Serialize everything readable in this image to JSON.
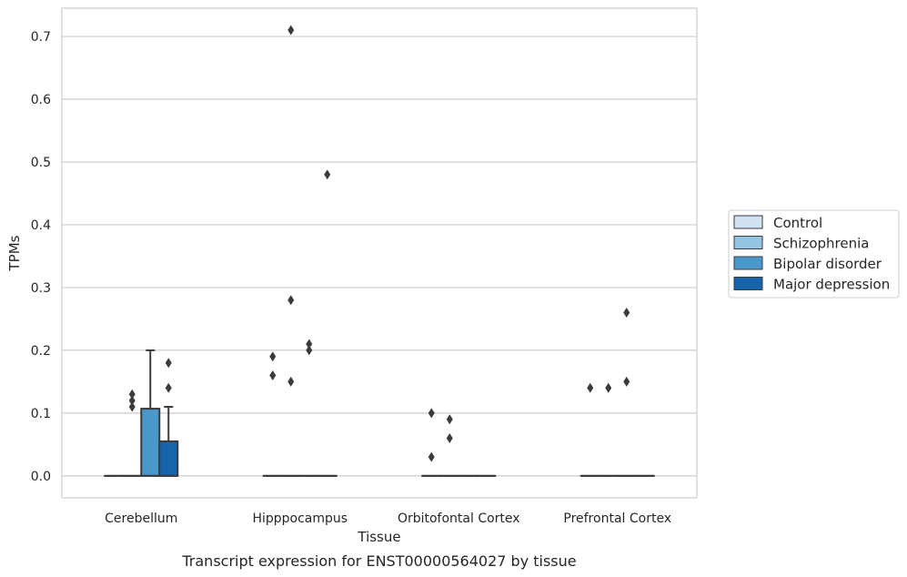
{
  "caption": "Transcript expression for ENST00000564027 by tissue",
  "chart_data": {
    "type": "box",
    "xlabel": "Tissue",
    "ylabel": "TPMs",
    "ylim": [
      -0.035,
      0.745
    ],
    "yticks": [
      "0.0",
      "0.1",
      "0.2",
      "0.3",
      "0.4",
      "0.5",
      "0.6",
      "0.7"
    ],
    "grid": "horizontal",
    "legend_position": "right",
    "categories": [
      "Cerebellum",
      "Hipppocampus",
      "Orbitofontal Cortex",
      "Prefrontal Cortex"
    ],
    "series": [
      {
        "name": "Control",
        "color": "#d0e1f2"
      },
      {
        "name": "Schizophrenia",
        "color": "#94c4df"
      },
      {
        "name": "Bipolar disorder",
        "color": "#4a98c9"
      },
      {
        "name": "Major depression",
        "color": "#1764ab"
      }
    ],
    "boxes": [
      [
        {
          "q1": 0,
          "median": 0,
          "q3": 0,
          "whisker_low": 0,
          "whisker_high": 0,
          "outliers": []
        },
        {
          "q1": 0,
          "median": 0,
          "q3": 0,
          "whisker_low": 0,
          "whisker_high": 0,
          "outliers": [
            0.11,
            0.12,
            0.13
          ]
        },
        {
          "q1": 0,
          "median": 0,
          "q3": 0.107,
          "whisker_low": 0,
          "whisker_high": 0.2,
          "outliers": []
        },
        {
          "q1": 0,
          "median": 0,
          "q3": 0.055,
          "whisker_low": 0,
          "whisker_high": 0.11,
          "outliers": [
            0.14,
            0.18
          ]
        }
      ],
      [
        {
          "q1": 0,
          "median": 0,
          "q3": 0,
          "whisker_low": 0,
          "whisker_high": 0,
          "outliers": [
            0.16,
            0.19
          ]
        },
        {
          "q1": 0,
          "median": 0,
          "q3": 0,
          "whisker_low": 0,
          "whisker_high": 0,
          "outliers": [
            0.15,
            0.28,
            0.71
          ]
        },
        {
          "q1": 0,
          "median": 0,
          "q3": 0,
          "whisker_low": 0,
          "whisker_high": 0,
          "outliers": [
            0.2,
            0.21
          ]
        },
        {
          "q1": 0,
          "median": 0,
          "q3": 0,
          "whisker_low": 0,
          "whisker_high": 0,
          "outliers": [
            0.48
          ]
        }
      ],
      [
        {
          "q1": 0,
          "median": 0,
          "q3": 0,
          "whisker_low": 0,
          "whisker_high": 0,
          "outliers": [
            0.03,
            0.1
          ]
        },
        {
          "q1": 0,
          "median": 0,
          "q3": 0,
          "whisker_low": 0,
          "whisker_high": 0,
          "outliers": [
            0.06,
            0.09
          ]
        },
        {
          "q1": 0,
          "median": 0,
          "q3": 0,
          "whisker_low": 0,
          "whisker_high": 0,
          "outliers": []
        },
        {
          "q1": 0,
          "median": 0,
          "q3": 0,
          "whisker_low": 0,
          "whisker_high": 0,
          "outliers": []
        }
      ],
      [
        {
          "q1": 0,
          "median": 0,
          "q3": 0,
          "whisker_low": 0,
          "whisker_high": 0,
          "outliers": [
            0.14
          ]
        },
        {
          "q1": 0,
          "median": 0,
          "q3": 0,
          "whisker_low": 0,
          "whisker_high": 0,
          "outliers": [
            0.14
          ]
        },
        {
          "q1": 0,
          "median": 0,
          "q3": 0,
          "whisker_low": 0,
          "whisker_high": 0,
          "outliers": [
            0.15,
            0.26
          ]
        },
        {
          "q1": 0,
          "median": 0,
          "q3": 0,
          "whisker_low": 0,
          "whisker_high": 0,
          "outliers": []
        }
      ]
    ]
  }
}
